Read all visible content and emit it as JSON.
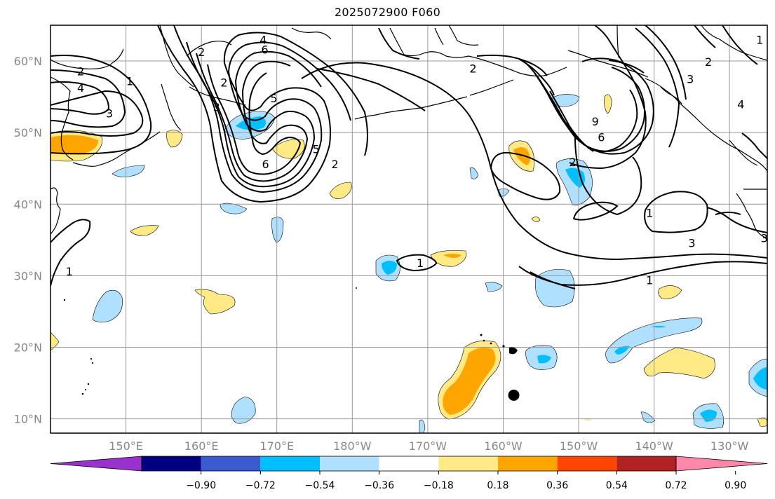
{
  "title": "2025072900 F060",
  "map": {
    "lat_min": 8,
    "lat_max": 65,
    "lon_min": 140,
    "lon_max": 235,
    "lat_ticks": [
      {
        "value": 10,
        "label": "10°N"
      },
      {
        "value": 20,
        "label": "20°N"
      },
      {
        "value": 30,
        "label": "30°N"
      },
      {
        "value": 40,
        "label": "40°N"
      },
      {
        "value": 50,
        "label": "50°N"
      },
      {
        "value": 60,
        "label": "60°N"
      }
    ],
    "lon_ticks": [
      {
        "value": 150,
        "label": "150°E"
      },
      {
        "value": 160,
        "label": "160°E"
      },
      {
        "value": 170,
        "label": "170°E"
      },
      {
        "value": 180,
        "label": "180°W"
      },
      {
        "value": 190,
        "label": "170°W"
      },
      {
        "value": 200,
        "label": "160°W"
      },
      {
        "value": 210,
        "label": "150°W"
      },
      {
        "value": 220,
        "label": "140°W"
      },
      {
        "value": 230,
        "label": "130°W"
      }
    ],
    "grid": true,
    "marker": {
      "lon": 201.4,
      "lat": 13.3,
      "color": "#000000"
    },
    "contour_labels": [
      {
        "text": "4",
        "lon": 168.2,
        "lat": 63.0
      },
      {
        "text": "6",
        "lon": 168.4,
        "lat": 61.6
      },
      {
        "text": "2",
        "lon": 160.0,
        "lat": 61.3
      },
      {
        "text": "2",
        "lon": 144.0,
        "lat": 58.6
      },
      {
        "text": "4",
        "lon": 144.0,
        "lat": 56.3
      },
      {
        "text": "1",
        "lon": 150.5,
        "lat": 57.2
      },
      {
        "text": "3",
        "lon": 147.8,
        "lat": 52.7
      },
      {
        "text": "2",
        "lon": 163.0,
        "lat": 57.0
      },
      {
        "text": "3",
        "lon": 162.0,
        "lat": 53.6
      },
      {
        "text": "5",
        "lon": 169.6,
        "lat": 54.8
      },
      {
        "text": "5",
        "lon": 175.2,
        "lat": 47.7
      },
      {
        "text": "6",
        "lon": 168.5,
        "lat": 45.6
      },
      {
        "text": "2",
        "lon": 177.7,
        "lat": 45.6
      },
      {
        "text": "2",
        "lon": 196.0,
        "lat": 59.0
      },
      {
        "text": "2",
        "lon": 227.2,
        "lat": 59.9
      },
      {
        "text": "3",
        "lon": 224.8,
        "lat": 57.5
      },
      {
        "text": "1",
        "lon": 234.0,
        "lat": 63.0
      },
      {
        "text": "9",
        "lon": 212.2,
        "lat": 51.6
      },
      {
        "text": "6",
        "lon": 213.0,
        "lat": 49.4
      },
      {
        "text": "2",
        "lon": 209.2,
        "lat": 45.9
      },
      {
        "text": "1",
        "lon": 219.4,
        "lat": 38.8
      },
      {
        "text": "3",
        "lon": 225.0,
        "lat": 34.6
      },
      {
        "text": "3",
        "lon": 234.6,
        "lat": 35.3
      },
      {
        "text": "1",
        "lon": 189.0,
        "lat": 31.8
      },
      {
        "text": "1",
        "lon": 219.4,
        "lat": 29.4
      },
      {
        "text": "1",
        "lon": 142.5,
        "lat": 30.6
      },
      {
        "text": "4",
        "lon": 231.5,
        "lat": 54.0
      }
    ]
  },
  "colorbar": {
    "levels": [
      "−0.90",
      "−0.72",
      "−0.54",
      "−0.36",
      "−0.18",
      "0.18",
      "0.36",
      "0.54",
      "0.72",
      "0.90"
    ],
    "colors": [
      "#9932cc",
      "#000080",
      "#3a5bcf",
      "#00bfff",
      "#afe0ff",
      "#ffffff",
      "#ffea85",
      "#ffa500",
      "#ff4500",
      "#b22222",
      "#ff88aa"
    ]
  }
}
